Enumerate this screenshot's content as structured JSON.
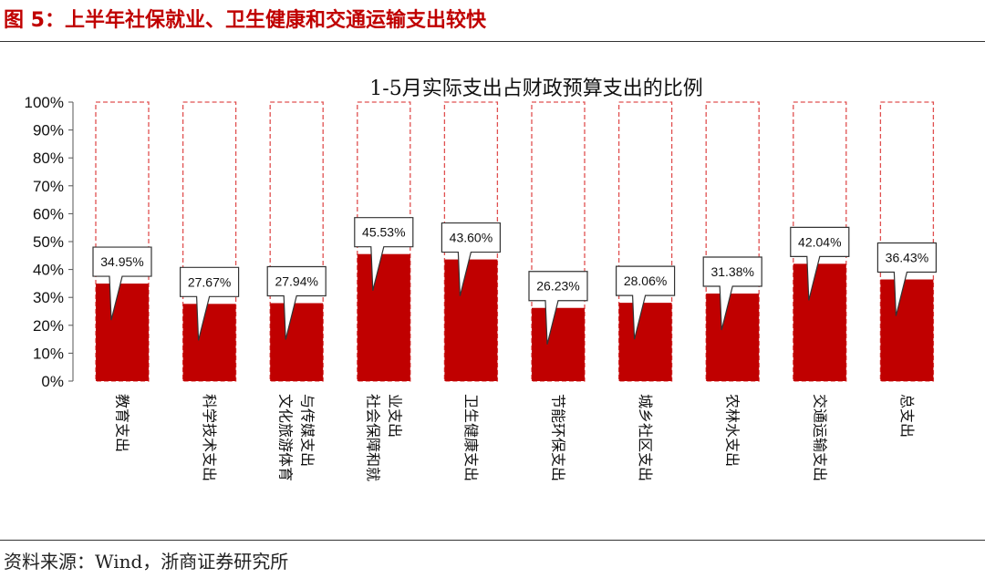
{
  "header": {
    "figure_title": "图 5：上半年社保就业、卫生健康和交通运输支出较快"
  },
  "footer": {
    "source": "资料来源：Wind，浙商证券研究所"
  },
  "colors": {
    "bar": "#c00000",
    "outline": "#e05050",
    "accent": "#c00000"
  },
  "chart_data": {
    "type": "bar",
    "title": "1-5月实际支出占财政预算支出的比例",
    "xlabel": "",
    "ylabel": "",
    "ylim": [
      0,
      100
    ],
    "y_ticks": [
      "0%",
      "10%",
      "20%",
      "30%",
      "40%",
      "50%",
      "60%",
      "70%",
      "80%",
      "90%",
      "100%"
    ],
    "categories": [
      [
        "教育支出"
      ],
      [
        "科学技术支出"
      ],
      [
        "文化旅游体育",
        "与传媒支出"
      ],
      [
        "社会保障和就",
        "业支出"
      ],
      [
        "卫生健康支出"
      ],
      [
        "节能环保支出"
      ],
      [
        "城乡社区支出"
      ],
      [
        "农林水支出"
      ],
      [
        "交通运输支出"
      ],
      [
        "总支出"
      ]
    ],
    "values": [
      34.95,
      27.67,
      27.94,
      45.53,
      43.6,
      26.23,
      28.06,
      31.38,
      42.04,
      36.43
    ],
    "data_labels": [
      "34.95%",
      "27.67%",
      "27.94%",
      "45.53%",
      "43.60%",
      "26.23%",
      "28.06%",
      "31.38%",
      "42.04%",
      "36.43%"
    ],
    "outline_value": 100,
    "grid": false,
    "legend": "none"
  }
}
